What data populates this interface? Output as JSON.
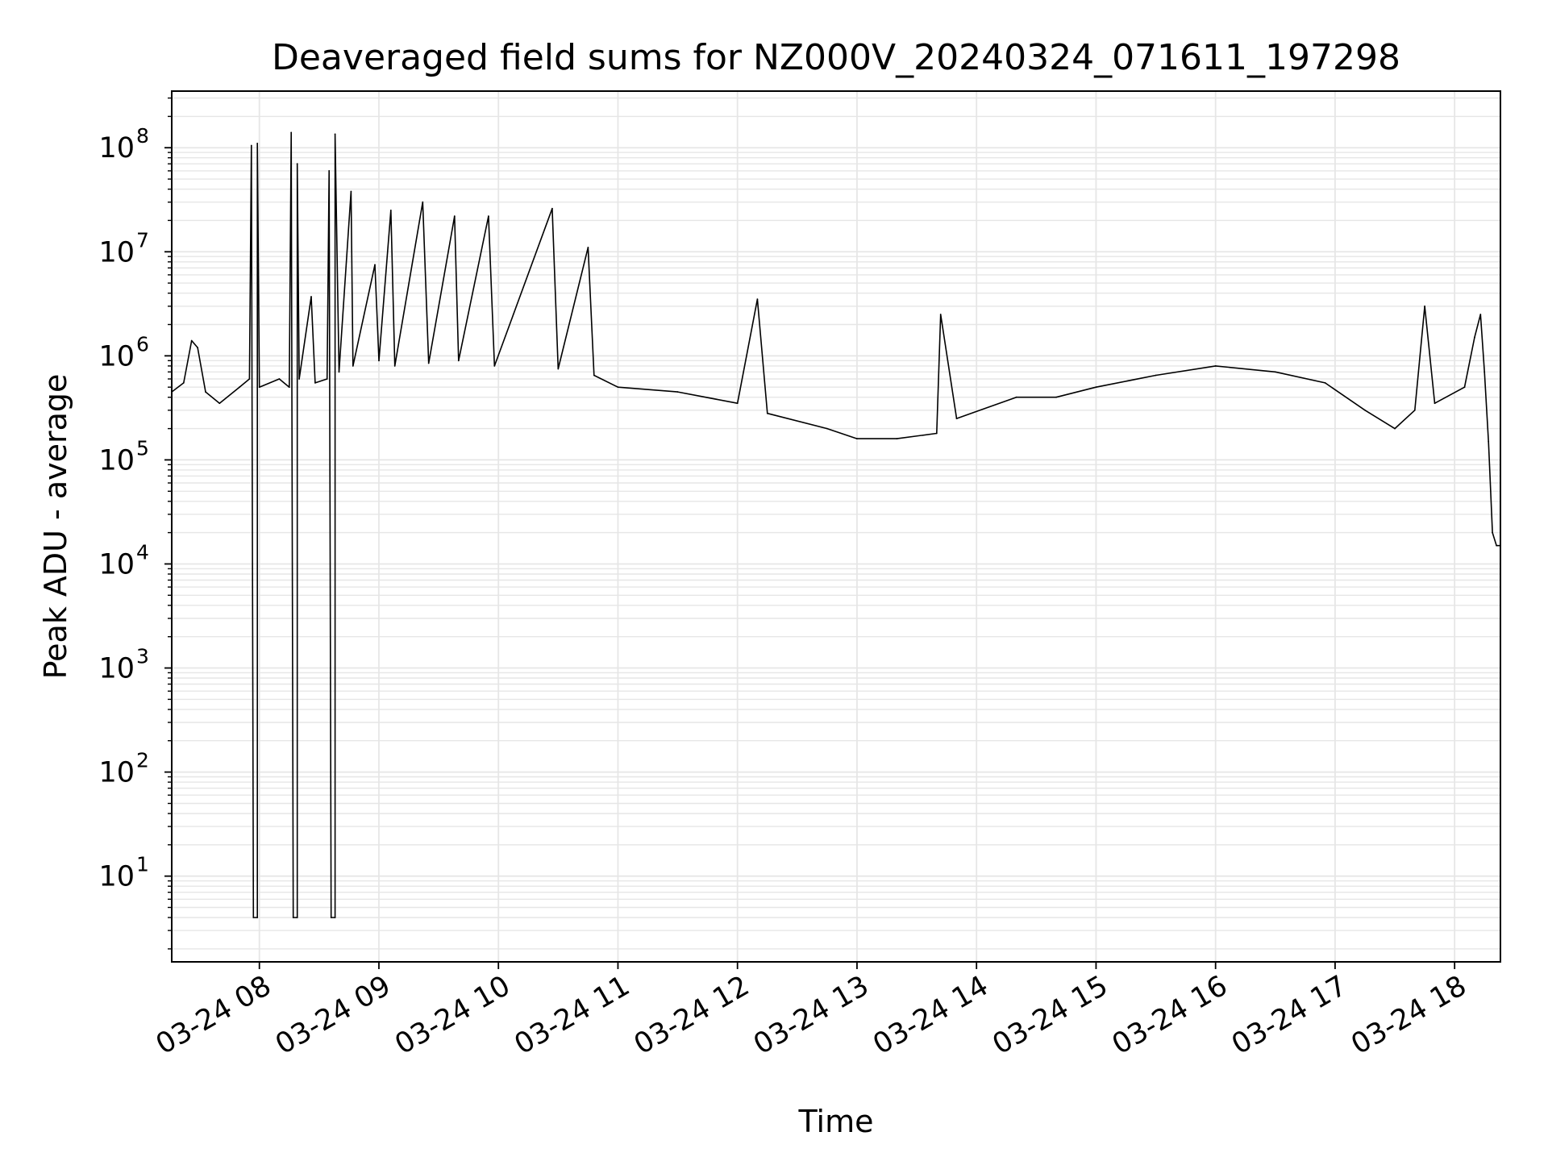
{
  "chart_data": {
    "type": "line",
    "title": "Deaveraged field sums for NZ000V_20240324_071611_197298",
    "xlabel": "Time",
    "ylabel": "Peak ADU - average",
    "yscale": "log",
    "ylim": [
      1.5,
      350000000
    ],
    "xlim": [
      "03-24 07:16",
      "03-24 18:23"
    ],
    "grid": true,
    "line_color": "#000000",
    "grid_color": "#e6e6e6",
    "x_ticks": [
      "03-24 08",
      "03-24 09",
      "03-24 10",
      "03-24 11",
      "03-24 12",
      "03-24 13",
      "03-24 14",
      "03-24 15",
      "03-24 16",
      "03-24 17",
      "03-24 18"
    ],
    "y_ticks": [
      {
        "value": 10,
        "base": "10",
        "exp": "1"
      },
      {
        "value": 100,
        "base": "10",
        "exp": "2"
      },
      {
        "value": 1000,
        "base": "10",
        "exp": "3"
      },
      {
        "value": 10000,
        "base": "10",
        "exp": "4"
      },
      {
        "value": 100000,
        "base": "10",
        "exp": "5"
      },
      {
        "value": 1000000,
        "base": "10",
        "exp": "6"
      },
      {
        "value": 10000000,
        "base": "10",
        "exp": "7"
      },
      {
        "value": 100000000,
        "base": "10",
        "exp": "8"
      }
    ],
    "series": [
      {
        "points": [
          [
            "03-24 07:16",
            450000
          ],
          [
            "03-24 07:22",
            550000
          ],
          [
            "03-24 07:26",
            1400000
          ],
          [
            "03-24 07:29",
            1200000
          ],
          [
            "03-24 07:33",
            450000
          ],
          [
            "03-24 07:40",
            350000
          ],
          [
            "03-24 07:50",
            500000
          ],
          [
            "03-24 07:55",
            600000
          ],
          [
            "03-24 07:56",
            105000000
          ],
          [
            "03-24 07:57",
            4
          ],
          [
            "03-24 07:59",
            4
          ],
          [
            "03-24 07:59",
            110000000
          ],
          [
            "03-24 08:00",
            500000
          ],
          [
            "03-24 08:10",
            600000
          ],
          [
            "03-24 08:15",
            500000
          ],
          [
            "03-24 08:16",
            140000000
          ],
          [
            "03-24 08:17",
            4
          ],
          [
            "03-24 08:19",
            4
          ],
          [
            "03-24 08:19",
            70000000
          ],
          [
            "03-24 08:20",
            600000
          ],
          [
            "03-24 08:26",
            3700000
          ],
          [
            "03-24 08:28",
            550000
          ],
          [
            "03-24 08:34",
            600000
          ],
          [
            "03-24 08:35",
            60000000
          ],
          [
            "03-24 08:36",
            4
          ],
          [
            "03-24 08:38",
            4
          ],
          [
            "03-24 08:38",
            135000000
          ],
          [
            "03-24 08:40",
            700000
          ],
          [
            "03-24 08:46",
            38000000
          ],
          [
            "03-24 08:47",
            800000
          ],
          [
            "03-24 08:58",
            7500000
          ],
          [
            "03-24 09:00",
            900000
          ],
          [
            "03-24 09:06",
            25000000
          ],
          [
            "03-24 09:08",
            800000
          ],
          [
            "03-24 09:22",
            30000000
          ],
          [
            "03-24 09:25",
            850000
          ],
          [
            "03-24 09:38",
            22000000
          ],
          [
            "03-24 09:40",
            900000
          ],
          [
            "03-24 09:55",
            22000000
          ],
          [
            "03-24 09:58",
            800000
          ],
          [
            "03-24 10:27",
            26000000
          ],
          [
            "03-24 10:30",
            750000
          ],
          [
            "03-24 10:45",
            11000000
          ],
          [
            "03-24 10:48",
            650000
          ],
          [
            "03-24 11:00",
            500000
          ],
          [
            "03-24 11:30",
            450000
          ],
          [
            "03-24 12:00",
            350000
          ],
          [
            "03-24 12:10",
            3500000
          ],
          [
            "03-24 12:15",
            280000
          ],
          [
            "03-24 12:45",
            200000
          ],
          [
            "03-24 13:00",
            160000
          ],
          [
            "03-24 13:20",
            160000
          ],
          [
            "03-24 13:40",
            180000
          ],
          [
            "03-24 13:42",
            2500000
          ],
          [
            "03-24 13:50",
            250000
          ],
          [
            "03-24 14:20",
            400000
          ],
          [
            "03-24 14:40",
            400000
          ],
          [
            "03-24 15:00",
            500000
          ],
          [
            "03-24 15:30",
            650000
          ],
          [
            "03-24 16:00",
            800000
          ],
          [
            "03-24 16:30",
            700000
          ],
          [
            "03-24 16:55",
            550000
          ],
          [
            "03-24 17:15",
            300000
          ],
          [
            "03-24 17:30",
            200000
          ],
          [
            "03-24 17:40",
            300000
          ],
          [
            "03-24 17:45",
            3000000
          ],
          [
            "03-24 17:50",
            350000
          ],
          [
            "03-24 18:05",
            500000
          ],
          [
            "03-24 18:10",
            1500000
          ],
          [
            "03-24 18:13",
            2500000
          ],
          [
            "03-24 18:15",
            700000
          ],
          [
            "03-24 18:17",
            150000
          ],
          [
            "03-24 18:19",
            20000
          ],
          [
            "03-24 18:21",
            15000
          ],
          [
            "03-24 18:23",
            15000
          ]
        ]
      }
    ]
  }
}
